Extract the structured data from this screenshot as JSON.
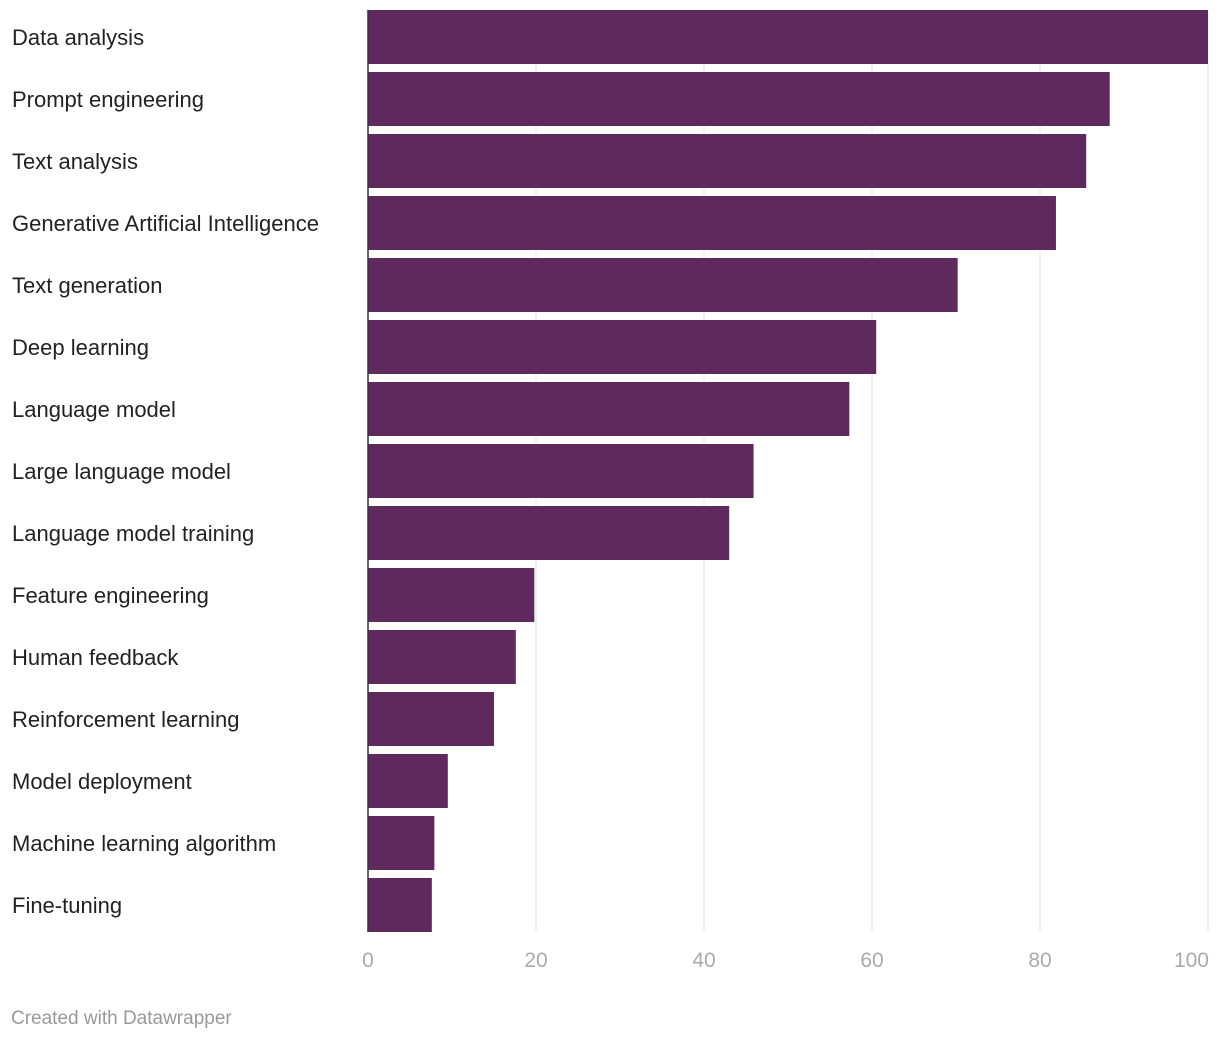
{
  "chart_data": {
    "type": "bar",
    "orientation": "horizontal",
    "categories": [
      "Data analysis",
      "Prompt engineering",
      "Text analysis",
      "Generative Artificial Intelligence",
      "Text generation",
      "Deep learning",
      "Language model",
      "Large language model",
      "Language model training",
      "Feature engineering",
      "Human feedback",
      "Reinforcement learning",
      "Model deployment",
      "Machine learning algorithm",
      "Fine-tuning"
    ],
    "values": [
      100,
      88.3,
      85.5,
      81.9,
      70.2,
      60.5,
      57.3,
      45.9,
      43.0,
      19.8,
      17.6,
      15.0,
      9.5,
      7.9,
      7.6
    ],
    "xlim": [
      0,
      100
    ],
    "ticks": [
      0,
      20,
      40,
      60,
      80,
      100
    ],
    "tick_labels": [
      "0",
      "20",
      "40",
      "60",
      "80",
      "100"
    ],
    "grid": true,
    "bar_color": "#5e2a5e",
    "title": "",
    "xlabel": "",
    "ylabel": ""
  },
  "footer": {
    "credit": "Created with Datawrapper"
  }
}
